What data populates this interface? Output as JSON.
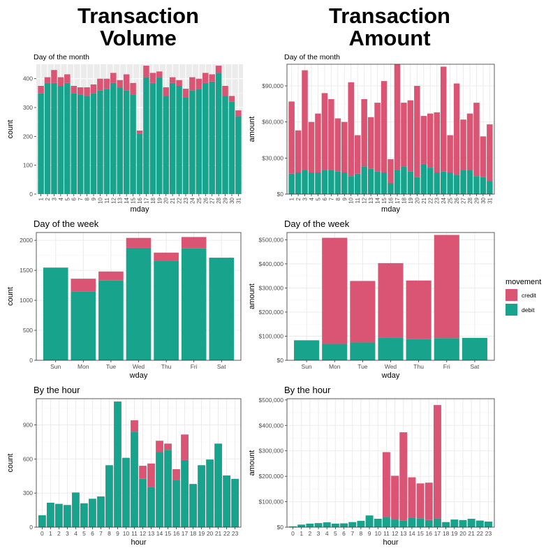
{
  "column_titles": [
    "Transaction\nVolume",
    "Transaction\nAmount"
  ],
  "legend": {
    "title": "movement",
    "entries": [
      {
        "label": "credit",
        "color": "#D95573"
      },
      {
        "label": "debit",
        "color": "#17A38C"
      }
    ]
  },
  "chart_data": [
    {
      "type": "bar",
      "stacked": true,
      "title": "Day of the month",
      "xlabel": "mday",
      "ylabel": "count",
      "theme": "gray",
      "ylim": [
        0,
        450
      ],
      "categories": [
        "1",
        "2",
        "3",
        "4",
        "5",
        "6",
        "7",
        "8",
        "9",
        "10",
        "11",
        "12",
        "13",
        "14",
        "15",
        "16",
        "17",
        "18",
        "19",
        "20",
        "21",
        "22",
        "23",
        "24",
        "25",
        "26",
        "27",
        "28",
        "29",
        "30",
        "31"
      ],
      "yticks": [
        0,
        100,
        200,
        300,
        400
      ],
      "ytick_labels": [
        "0",
        "100",
        "200",
        "300",
        "400"
      ],
      "series": [
        {
          "name": "debit",
          "values": [
            350,
            385,
            385,
            375,
            385,
            350,
            345,
            340,
            350,
            360,
            365,
            385,
            370,
            360,
            345,
            210,
            405,
            385,
            405,
            340,
            385,
            375,
            335,
            360,
            365,
            385,
            390,
            420,
            340,
            320,
            270
          ]
        },
        {
          "name": "credit",
          "values": [
            25,
            20,
            45,
            30,
            30,
            25,
            25,
            30,
            30,
            40,
            35,
            35,
            25,
            55,
            40,
            10,
            40,
            35,
            20,
            30,
            20,
            20,
            30,
            45,
            35,
            35,
            25,
            25,
            35,
            20,
            20
          ]
        }
      ]
    },
    {
      "type": "bar",
      "stacked": true,
      "title": "Day of the month",
      "xlabel": "mday",
      "ylabel": "amount",
      "theme": "bw",
      "ylim": [
        0,
        108000
      ],
      "categories": [
        "1",
        "2",
        "3",
        "4",
        "5",
        "6",
        "7",
        "8",
        "9",
        "10",
        "11",
        "12",
        "13",
        "14",
        "15",
        "16",
        "17",
        "18",
        "19",
        "20",
        "21",
        "22",
        "23",
        "24",
        "25",
        "26",
        "27",
        "28",
        "29",
        "30",
        "31"
      ],
      "yticks": [
        0,
        30000,
        60000,
        90000
      ],
      "ytick_labels": [
        "$0",
        "$30,000",
        "$60,000",
        "$90,000"
      ],
      "series": [
        {
          "name": "debit",
          "values": [
            17000,
            18000,
            20000,
            18000,
            18000,
            20000,
            20000,
            19000,
            18000,
            15000,
            17000,
            23000,
            21000,
            19000,
            18000,
            9000,
            20000,
            23000,
            19000,
            14000,
            25000,
            22000,
            18000,
            19000,
            18000,
            16000,
            20000,
            20000,
            15000,
            14000,
            11000
          ]
        },
        {
          "name": "credit",
          "values": [
            60000,
            35000,
            83000,
            42000,
            49000,
            64000,
            59000,
            44000,
            42000,
            78000,
            32000,
            56000,
            43000,
            57000,
            76000,
            20000,
            88000,
            53000,
            59000,
            76000,
            40000,
            45000,
            50000,
            87000,
            31000,
            76000,
            42000,
            47000,
            61000,
            34000,
            47000
          ]
        }
      ]
    },
    {
      "type": "bar",
      "stacked": true,
      "title": "Day of the week",
      "xlabel": "wday",
      "ylabel": "count",
      "theme": "bw",
      "ylim": [
        0,
        2130
      ],
      "categories": [
        "Sun",
        "Mon",
        "Tue",
        "Wed",
        "Thu",
        "Fri",
        "Sat"
      ],
      "yticks": [
        0,
        500,
        1000,
        1500,
        2000
      ],
      "ytick_labels": [
        "0",
        "500",
        "1000",
        "1500",
        "2000"
      ],
      "series": [
        {
          "name": "debit",
          "values": [
            1545,
            1150,
            1330,
            1875,
            1660,
            1865,
            1710
          ]
        },
        {
          "name": "credit",
          "values": [
            0,
            210,
            150,
            165,
            135,
            190,
            0
          ]
        }
      ]
    },
    {
      "type": "bar",
      "stacked": true,
      "title": "Day of the week",
      "xlabel": "wday",
      "ylabel": "amount",
      "theme": "bw",
      "ylim": [
        0,
        530000
      ],
      "categories": [
        "Sun",
        "Mon",
        "Tue",
        "Wed",
        "Thu",
        "Fri",
        "Sat"
      ],
      "yticks": [
        0,
        100000,
        200000,
        300000,
        400000,
        500000
      ],
      "ytick_labels": [
        "$0",
        "$100,000",
        "$200,000",
        "$300,000",
        "$400,000",
        "$500,000"
      ],
      "series": [
        {
          "name": "debit",
          "values": [
            83000,
            68000,
            74000,
            95000,
            89000,
            92000,
            93000
          ]
        },
        {
          "name": "credit",
          "values": [
            0,
            440000,
            255000,
            308000,
            242000,
            428000,
            0
          ]
        }
      ]
    },
    {
      "type": "bar",
      "stacked": true,
      "title": "By the hour",
      "xlabel": "hour",
      "ylabel": "count",
      "theme": "bw",
      "ylim": [
        0,
        1130
      ],
      "categories": [
        "0",
        "1",
        "2",
        "3",
        "4",
        "5",
        "6",
        "7",
        "8",
        "9",
        "10",
        "11",
        "12",
        "13",
        "14",
        "15",
        "16",
        "17",
        "18",
        "19",
        "20",
        "21",
        "22",
        "23"
      ],
      "yticks": [
        0,
        300,
        600,
        900
      ],
      "ytick_labels": [
        "0",
        "300",
        "600",
        "900"
      ],
      "series": [
        {
          "name": "debit",
          "values": [
            105,
            215,
            205,
            195,
            305,
            210,
            250,
            270,
            545,
            1105,
            610,
            840,
            425,
            355,
            660,
            680,
            415,
            590,
            380,
            545,
            595,
            735,
            455,
            425
          ]
        },
        {
          "name": "credit",
          "values": [
            0,
            0,
            0,
            0,
            0,
            0,
            0,
            0,
            0,
            0,
            0,
            100,
            115,
            205,
            100,
            55,
            95,
            225,
            0,
            0,
            0,
            0,
            0,
            0
          ]
        }
      ]
    },
    {
      "type": "bar",
      "stacked": true,
      "title": "By the hour",
      "xlabel": "hour",
      "ylabel": "amount",
      "theme": "bw",
      "ylim": [
        0,
        505000
      ],
      "categories": [
        "0",
        "1",
        "2",
        "3",
        "4",
        "5",
        "6",
        "7",
        "8",
        "9",
        "10",
        "11",
        "12",
        "13",
        "14",
        "15",
        "16",
        "17",
        "18",
        "19",
        "20",
        "21",
        "22",
        "23"
      ],
      "yticks": [
        0,
        100000,
        200000,
        300000,
        400000,
        500000
      ],
      "ytick_labels": [
        "$0",
        "$100,000",
        "$200,000",
        "$300,000",
        "$400,000",
        "$500,000"
      ],
      "series": [
        {
          "name": "debit",
          "values": [
            3000,
            10000,
            14000,
            16000,
            19000,
            14000,
            15000,
            20000,
            25000,
            46000,
            33000,
            40000,
            30000,
            25000,
            38000,
            35000,
            28000,
            34000,
            20000,
            30000,
            28000,
            33000,
            26000,
            22000
          ]
        },
        {
          "name": "credit",
          "values": [
            0,
            0,
            0,
            0,
            0,
            0,
            0,
            0,
            0,
            0,
            0,
            255000,
            172000,
            348000,
            158000,
            137000,
            147000,
            446000,
            0,
            0,
            0,
            0,
            0,
            0
          ]
        }
      ]
    }
  ]
}
